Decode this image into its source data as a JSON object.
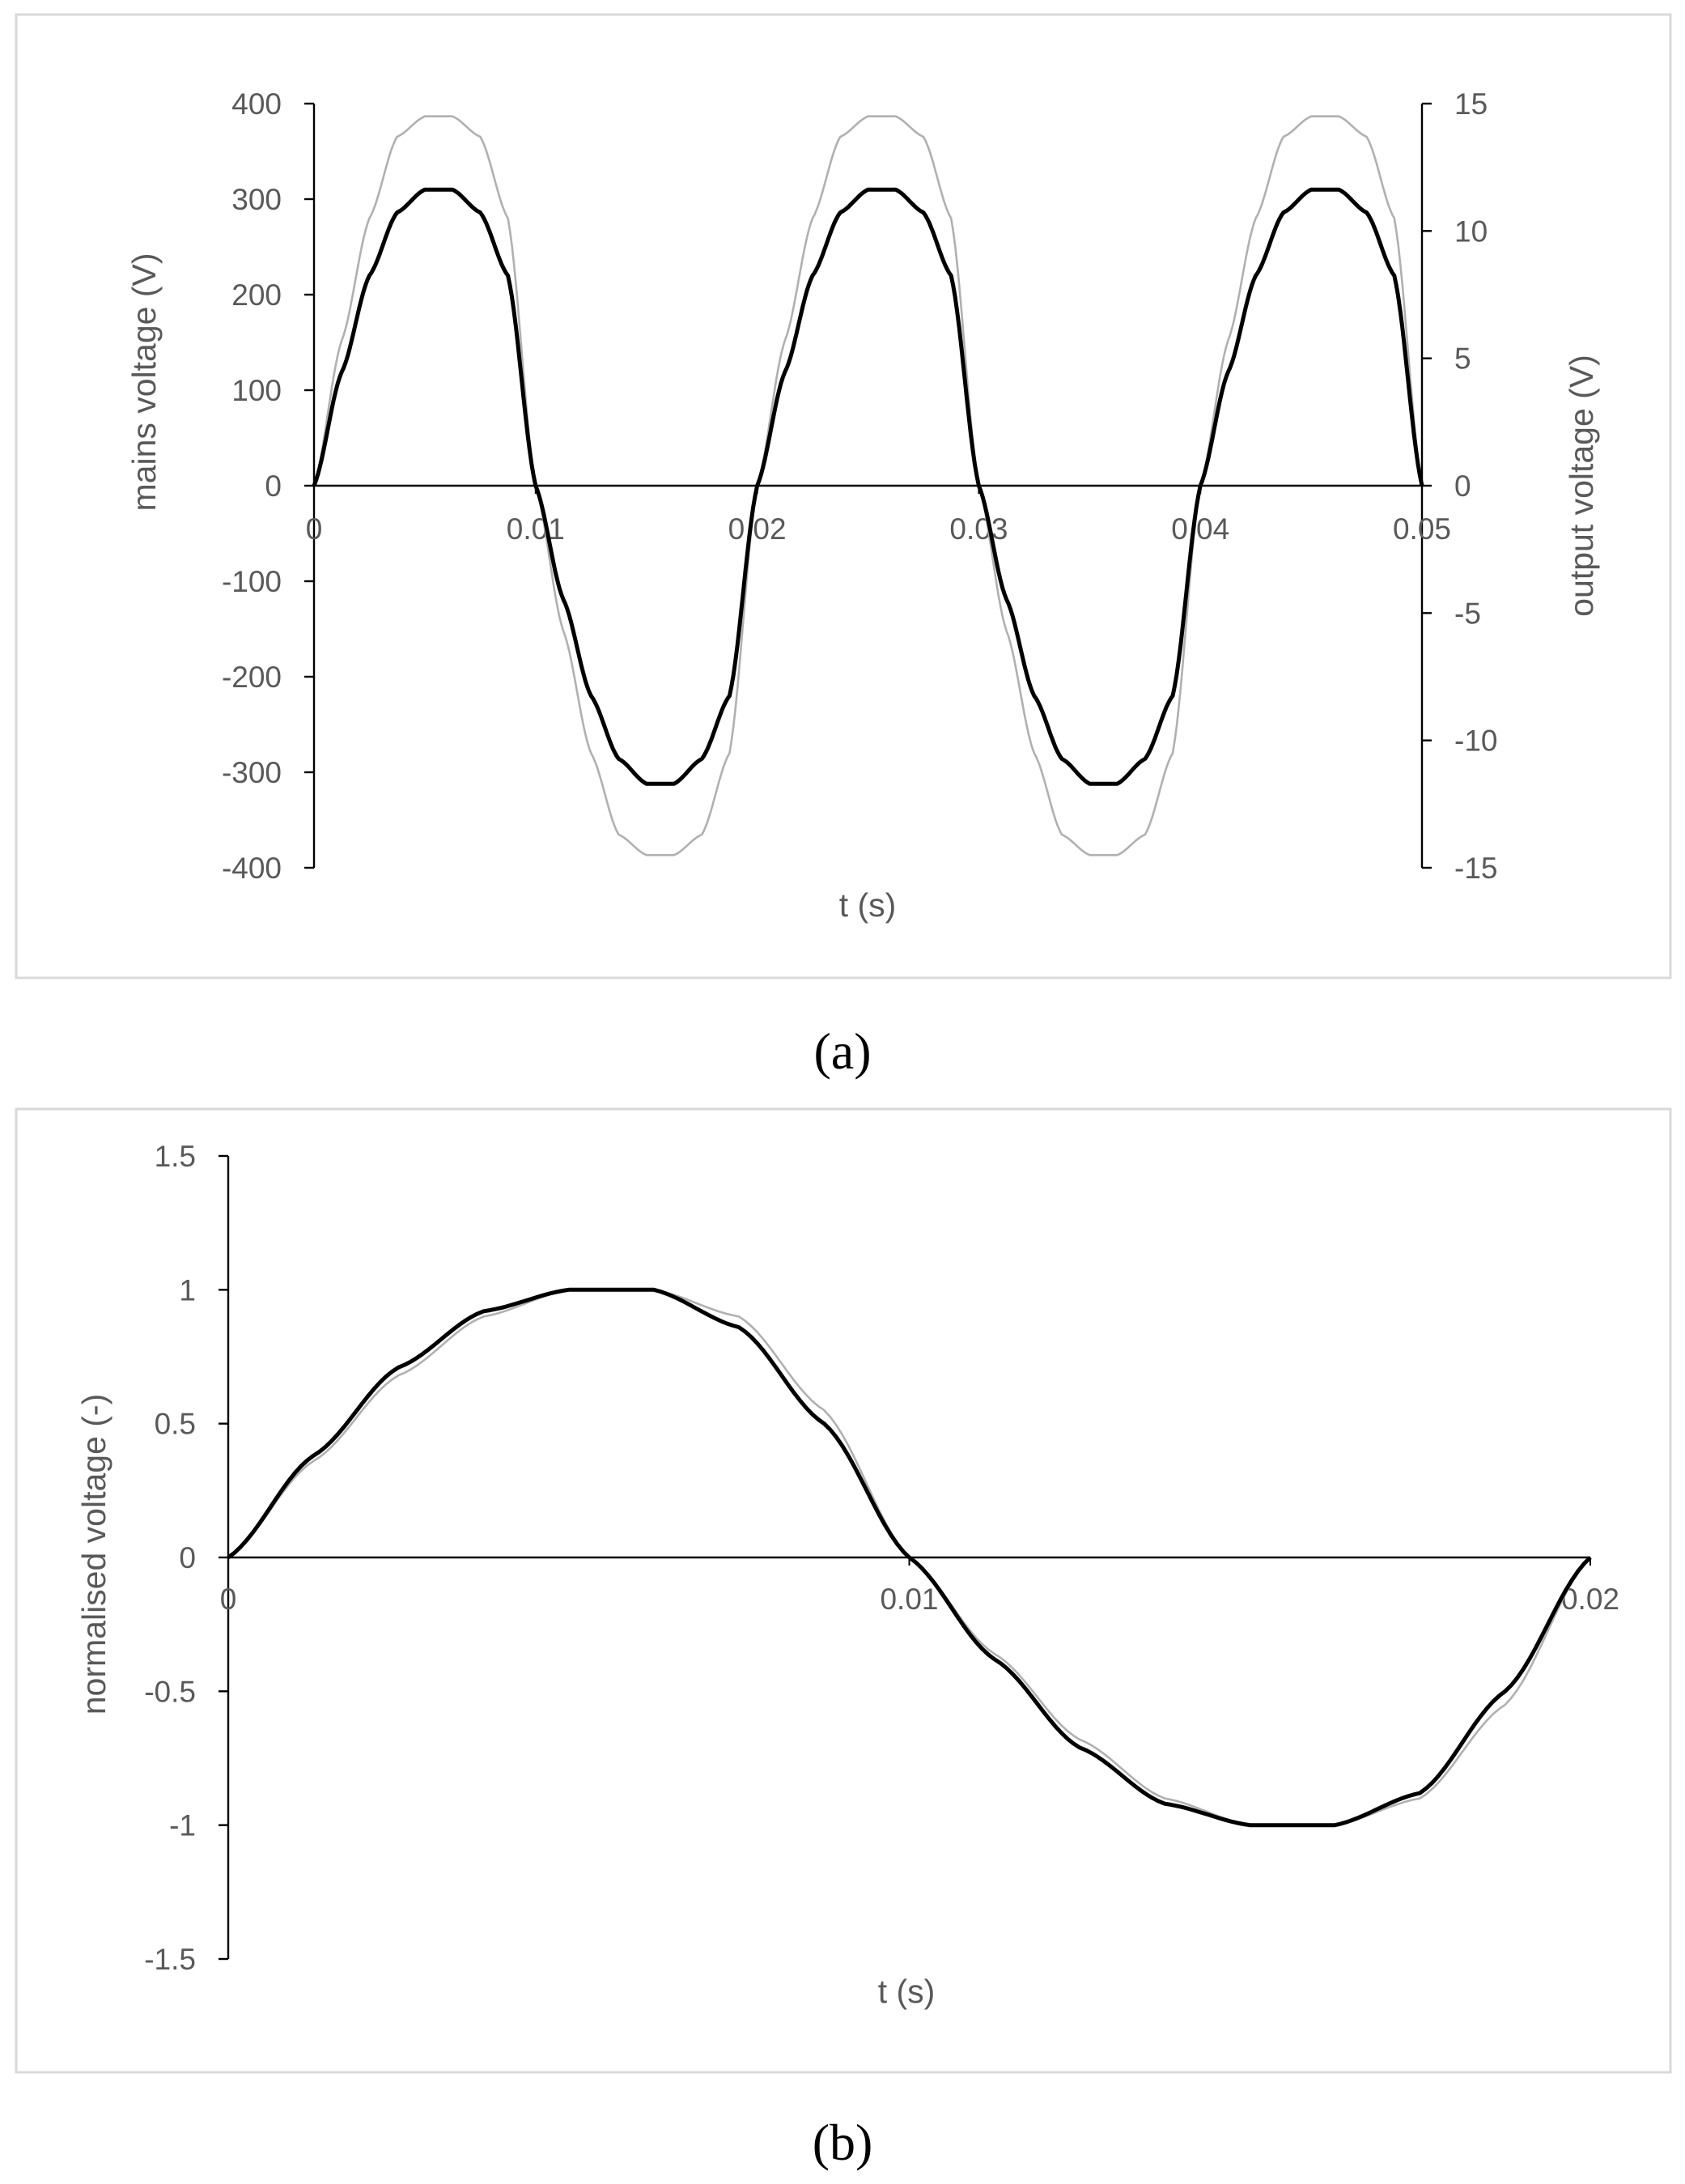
{
  "chart_data": [
    {
      "type": "line",
      "panel_label": "a",
      "xlabel": "t (s)",
      "ylabel": "mains voltage (V)",
      "y2label": "output voltage (V)",
      "xlim": [
        0,
        0.05
      ],
      "ylim": [
        -400,
        400
      ],
      "y2lim": [
        -15,
        15
      ],
      "xticks": [
        "0",
        "0.01",
        "0.02",
        "0.03",
        "0.04",
        "0.05"
      ],
      "yticks": [
        "400",
        "300",
        "200",
        "100",
        "0",
        "-100",
        "-200",
        "-300",
        "-400"
      ],
      "y2ticks": [
        "15",
        "10",
        "5",
        "0",
        "-5",
        "-10",
        "-15"
      ],
      "grid": false,
      "legend": "none",
      "frequency_hz": 50,
      "series": [
        {
          "axis": "y",
          "color": "#000000",
          "x": [
            0,
            0.00125,
            0.0025,
            0.00375,
            0.005,
            0.00625,
            0.0075,
            0.00875,
            0.01,
            0.01125,
            0.0125,
            0.01375,
            0.015,
            0.01625,
            0.0175,
            0.01875,
            0.02
          ],
          "values": [
            0,
            119,
            220,
            286,
            310,
            310,
            286,
            220,
            0,
            -119,
            -220,
            -286,
            -312,
            -312,
            -286,
            -220,
            0
          ]
        },
        {
          "axis": "y2",
          "color": "#b0b0b0",
          "x": [
            0,
            0.00125,
            0.0025,
            0.00375,
            0.005,
            0.00625,
            0.0075,
            0.00875,
            0.01,
            0.01125,
            0.0125,
            0.01375,
            0.015,
            0.01625,
            0.0175,
            0.01875,
            0.02
          ],
          "values": [
            0,
            5.7,
            10.5,
            13.7,
            14.5,
            14.5,
            13.7,
            10.5,
            0,
            -5.7,
            -10.5,
            -13.7,
            -14.5,
            -14.5,
            -13.7,
            -10.5,
            0
          ]
        }
      ]
    },
    {
      "type": "line",
      "panel_label": "b",
      "xlabel": "t (s)",
      "ylabel": "normalised voltage (-)",
      "xlim": [
        0,
        0.02
      ],
      "ylim": [
        -1.5,
        1.5
      ],
      "xticks": [
        "0",
        "0.01",
        "0.02"
      ],
      "yticks": [
        "1.5",
        "1",
        "0.5",
        "0",
        "-0.5",
        "-1",
        "-1.5"
      ],
      "grid": false,
      "legend": "none",
      "series": [
        {
          "color": "#000000",
          "x": [
            0,
            0.00125,
            0.0025,
            0.00375,
            0.005,
            0.00625,
            0.0075,
            0.00875,
            0.01,
            0.01125,
            0.0125,
            0.01375,
            0.015,
            0.01625,
            0.0175,
            0.01875,
            0.02
          ],
          "values": [
            0,
            0.38,
            0.71,
            0.92,
            1.0,
            1.0,
            0.86,
            0.5,
            0,
            -0.38,
            -0.71,
            -0.92,
            -1.0,
            -1.0,
            -0.88,
            -0.5,
            0
          ]
        },
        {
          "color": "#b0b0b0",
          "x": [
            0,
            0.00125,
            0.0025,
            0.00375,
            0.005,
            0.00625,
            0.0075,
            0.00875,
            0.01,
            0.01125,
            0.0125,
            0.01375,
            0.015,
            0.01625,
            0.0175,
            0.01875,
            0.02
          ],
          "values": [
            0,
            0.36,
            0.68,
            0.9,
            1.0,
            1.0,
            0.9,
            0.55,
            0,
            -0.36,
            -0.68,
            -0.9,
            -1.0,
            -1.0,
            -0.9,
            -0.55,
            0
          ]
        }
      ]
    }
  ],
  "captions": {
    "a": "(a)",
    "b": "(b)"
  }
}
